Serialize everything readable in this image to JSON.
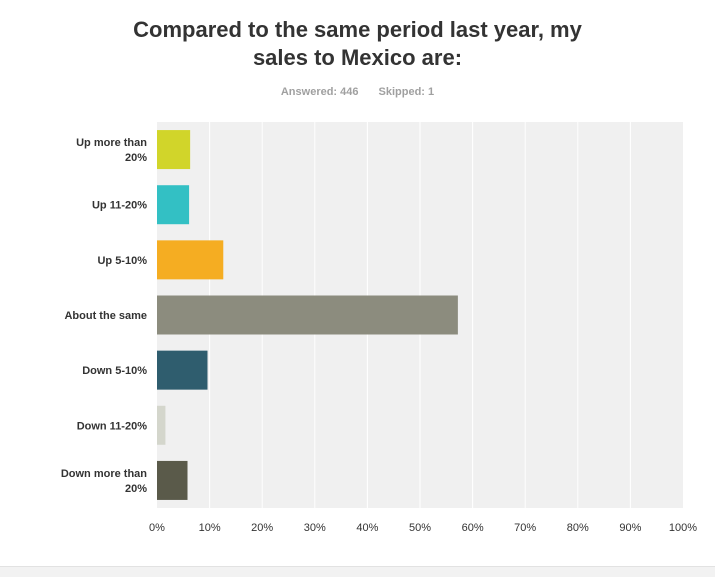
{
  "chart_data": {
    "type": "bar",
    "orientation": "horizontal",
    "title": "Compared to the same period last year, my sales to Mexico are:",
    "categories": [
      [
        "Up more than",
        "20%"
      ],
      [
        "Up 11-20%"
      ],
      [
        "Up 5-10%"
      ],
      [
        "About the same"
      ],
      [
        "Down 5-10%"
      ],
      [
        "Down 11-20%"
      ],
      [
        "Down more than",
        "20%"
      ]
    ],
    "values": [
      6.3,
      6.1,
      12.6,
      57.2,
      9.6,
      1.6,
      5.8
    ],
    "colors": [
      "#d1d52a",
      "#33c0c4",
      "#f5ad22",
      "#8c8c7e",
      "#2f5d6e",
      "#d4d6cc",
      "#5a5a4a"
    ],
    "xlim": [
      0,
      100
    ],
    "xticks": [
      "0%",
      "10%",
      "20%",
      "30%",
      "40%",
      "50%",
      "60%",
      "70%",
      "80%",
      "90%",
      "100%"
    ],
    "grid": true
  },
  "header": {
    "title_line1": "Compared to the same period last year, my",
    "title_line2": "sales to Mexico are:",
    "answered": "Answered: 446",
    "skipped": "Skipped: 1"
  }
}
